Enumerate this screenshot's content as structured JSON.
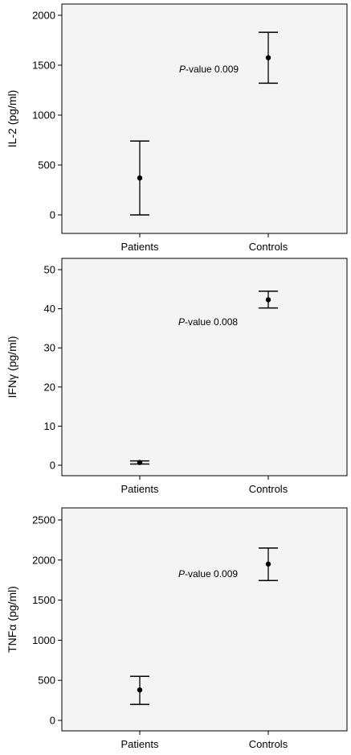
{
  "chart_data": [
    {
      "type": "errorbar",
      "ylabel": "IL-2 (pg/ml)",
      "categories": [
        "Patients",
        "Controls"
      ],
      "ylim": [
        0,
        2000
      ],
      "yticks": [
        "0",
        "500",
        "1000",
        "1500",
        "2000"
      ],
      "points": [
        {
          "category": "Patients",
          "mean": 370,
          "lower": 0,
          "upper": 740
        },
        {
          "category": "Controls",
          "mean": 1575,
          "lower": 1320,
          "upper": 1830
        }
      ],
      "annotation": {
        "italic": "P",
        "text": "-value 0.009"
      }
    },
    {
      "type": "errorbar",
      "ylabel": "IFNγ (pg/ml)",
      "categories": [
        "Patients",
        "Controls"
      ],
      "ylim": [
        0,
        50
      ],
      "yticks": [
        "0",
        "10",
        "20",
        "30",
        "40",
        "50"
      ],
      "points": [
        {
          "category": "Patients",
          "mean": 0.7,
          "lower": 0.3,
          "upper": 1.1
        },
        {
          "category": "Controls",
          "mean": 42.3,
          "lower": 40.2,
          "upper": 44.5
        }
      ],
      "annotation": {
        "italic": "P",
        "text": "-value 0.008"
      }
    },
    {
      "type": "errorbar",
      "ylabel": "TNFα (pg/ml)",
      "categories": [
        "Patients",
        "Controls"
      ],
      "ylim": [
        0,
        2500
      ],
      "yticks": [
        "0",
        "500",
        "1000",
        "1500",
        "2000",
        "2500"
      ],
      "points": [
        {
          "category": "Patients",
          "mean": 380,
          "lower": 200,
          "upper": 550
        },
        {
          "category": "Controls",
          "mean": 1950,
          "lower": 1745,
          "upper": 2150
        }
      ],
      "annotation": {
        "italic": "P",
        "text": "-value 0.009"
      }
    }
  ],
  "colors": {
    "plot_background": "#f4f4f4",
    "marks": "#000000"
  }
}
